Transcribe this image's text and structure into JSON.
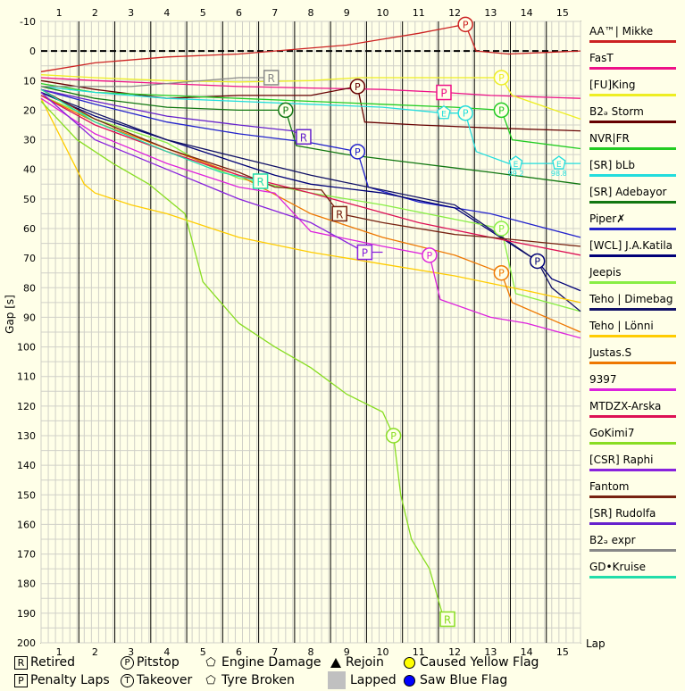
{
  "chart_data": {
    "type": "line",
    "title": "",
    "xlabel": "Lap",
    "ylabel": "Gap [s]",
    "xlim": [
      0.5,
      15.5
    ],
    "ylim": [
      -10,
      200
    ],
    "y_inverted": true,
    "x_ticks": [
      1,
      2,
      3,
      4,
      5,
      6,
      7,
      8,
      9,
      10,
      11,
      12,
      13,
      14,
      15
    ],
    "y_ticks": [
      -10,
      0,
      10,
      20,
      30,
      40,
      50,
      60,
      70,
      80,
      90,
      100,
      110,
      120,
      130,
      140,
      150,
      160,
      170,
      180,
      190,
      200
    ],
    "grid": true,
    "legend_position": "right",
    "series": [
      {
        "name": "AA™| Mikke",
        "color": "#cc2222",
        "points": [
          [
            0.5,
            7
          ],
          [
            2,
            4
          ],
          [
            4,
            2
          ],
          [
            6,
            1
          ],
          [
            7,
            0
          ],
          [
            9,
            -2
          ],
          [
            10,
            -4
          ],
          [
            11,
            -6
          ],
          [
            12.3,
            -9
          ],
          [
            12.6,
            0
          ],
          [
            13.5,
            1
          ],
          [
            15.5,
            0
          ]
        ],
        "events": [
          {
            "type": "pitstop",
            "x": 12.3,
            "y": -9
          }
        ]
      },
      {
        "name": "FasT",
        "color": "#ee1188",
        "points": [
          [
            0.5,
            9
          ],
          [
            2,
            10
          ],
          [
            4,
            11
          ],
          [
            6,
            12
          ],
          [
            8,
            12.5
          ],
          [
            10,
            13
          ],
          [
            11.7,
            14
          ],
          [
            13,
            15
          ],
          [
            15.5,
            16
          ]
        ],
        "events": [
          {
            "type": "penalty",
            "x": 11.7,
            "y": 14
          }
        ]
      },
      {
        "name": "[FU]King",
        "color": "#eeee22",
        "points": [
          [
            0.5,
            8
          ],
          [
            2,
            9
          ],
          [
            4,
            10
          ],
          [
            6,
            10.5
          ],
          [
            8,
            10
          ],
          [
            9.3,
            9
          ],
          [
            11,
            9
          ],
          [
            13.3,
            9
          ],
          [
            13.6,
            15
          ],
          [
            15.5,
            23
          ]
        ],
        "events": [
          {
            "type": "pitstop",
            "x": 13.3,
            "y": 9
          }
        ]
      },
      {
        "name": "B2ₔ Storm",
        "color": "#660000",
        "points": [
          [
            0.5,
            10
          ],
          [
            2,
            13
          ],
          [
            4,
            16
          ],
          [
            6,
            15
          ],
          [
            8,
            15
          ],
          [
            9.3,
            12
          ],
          [
            9.5,
            24
          ],
          [
            11,
            25
          ],
          [
            13,
            26
          ],
          [
            15.5,
            27
          ]
        ],
        "events": [
          {
            "type": "pitstop",
            "x": 9.3,
            "y": 12
          }
        ]
      },
      {
        "name": "NVR|FR",
        "color": "#22cc22",
        "points": [
          [
            0.5,
            11
          ],
          [
            2,
            14
          ],
          [
            4,
            15
          ],
          [
            6,
            16
          ],
          [
            8,
            17
          ],
          [
            10,
            18
          ],
          [
            12,
            19
          ],
          [
            13.3,
            20
          ],
          [
            13.6,
            30
          ],
          [
            15.5,
            33
          ]
        ],
        "events": [
          {
            "type": "pitstop",
            "x": 13.3,
            "y": 20
          }
        ]
      },
      {
        "name": "[SR] bLb",
        "color": "#22dddd",
        "points": [
          [
            0.5,
            12
          ],
          [
            2,
            14
          ],
          [
            4,
            16
          ],
          [
            6,
            17
          ],
          [
            8,
            18
          ],
          [
            10,
            19
          ],
          [
            11.7,
            21
          ],
          [
            12.3,
            21
          ],
          [
            12.6,
            34
          ],
          [
            13.5,
            38
          ],
          [
            14.5,
            38
          ],
          [
            15.5,
            38
          ]
        ],
        "events": [
          {
            "type": "engine",
            "x": 11.7,
            "y": 21
          },
          {
            "type": "pitstop",
            "x": 12.3,
            "y": 21
          },
          {
            "type": "engine",
            "x": 13.7,
            "y": 38
          },
          {
            "type": "engine",
            "x": 14.9,
            "y": 38
          }
        ]
      },
      {
        "name": "[SR] Adebayor",
        "color": "#117711",
        "points": [
          [
            0.5,
            12
          ],
          [
            2,
            16
          ],
          [
            4,
            19
          ],
          [
            6,
            20
          ],
          [
            7.3,
            20
          ],
          [
            7.6,
            32
          ],
          [
            9,
            35
          ],
          [
            11,
            38
          ],
          [
            13,
            41
          ],
          [
            15.5,
            45
          ]
        ],
        "events": [
          {
            "type": "pitstop",
            "x": 7.3,
            "y": 20
          }
        ]
      },
      {
        "name": "Piper✗",
        "color": "#2222cc",
        "points": [
          [
            0.5,
            13
          ],
          [
            2,
            18
          ],
          [
            4,
            24
          ],
          [
            6,
            28
          ],
          [
            8,
            31
          ],
          [
            9.3,
            34
          ],
          [
            9.6,
            46
          ],
          [
            11,
            51
          ],
          [
            13,
            55
          ],
          [
            15.5,
            63
          ]
        ],
        "events": [
          {
            "type": "pitstop",
            "x": 9.3,
            "y": 34
          }
        ]
      },
      {
        "name": "[WCL] J.A.Katila",
        "color": "#000077",
        "points": [
          [
            0.5,
            14
          ],
          [
            2,
            22
          ],
          [
            4,
            30
          ],
          [
            6,
            38
          ],
          [
            7,
            42
          ],
          [
            8,
            45
          ],
          [
            10,
            48
          ],
          [
            12,
            53
          ],
          [
            14.3,
            71
          ],
          [
            14.7,
            77
          ],
          [
            15.5,
            81
          ]
        ],
        "events": [
          {
            "type": "pitstop",
            "x": 14.3,
            "y": 71
          }
        ]
      },
      {
        "name": "Jeepis",
        "color": "#88ee44",
        "points": [
          [
            0.5,
            15
          ],
          [
            2,
            23
          ],
          [
            4,
            31
          ],
          [
            5,
            38
          ],
          [
            6,
            43
          ],
          [
            8,
            48
          ],
          [
            10,
            52
          ],
          [
            13.3,
            60
          ],
          [
            13.7,
            82
          ],
          [
            15.5,
            88
          ]
        ],
        "events": [
          {
            "type": "pitstop",
            "x": 13.3,
            "y": 60
          }
        ]
      },
      {
        "name": "Teho | Dimebag",
        "color": "#111166",
        "points": [
          [
            0.5,
            14
          ],
          [
            2,
            21
          ],
          [
            4,
            30
          ],
          [
            6,
            36
          ],
          [
            8,
            42
          ],
          [
            10,
            47
          ],
          [
            12,
            52
          ],
          [
            14.3,
            71
          ],
          [
            14.7,
            80
          ],
          [
            15.5,
            88
          ]
        ],
        "events": []
      },
      {
        "name": "Teho | Lönni",
        "color": "#ffcc00",
        "points": [
          [
            0.5,
            16
          ],
          [
            1.7,
            45
          ],
          [
            2,
            48
          ],
          [
            3,
            52
          ],
          [
            4,
            55
          ],
          [
            6,
            63
          ],
          [
            8,
            68
          ],
          [
            10,
            72
          ],
          [
            12,
            76
          ],
          [
            14,
            81
          ],
          [
            15.5,
            85
          ]
        ],
        "events": []
      },
      {
        "name": "Justas.S",
        "color": "#ee7700",
        "points": [
          [
            0.5,
            15
          ],
          [
            2,
            24
          ],
          [
            4,
            33
          ],
          [
            6,
            42
          ],
          [
            8,
            55
          ],
          [
            10,
            63
          ],
          [
            12,
            69
          ],
          [
            13.3,
            75
          ],
          [
            13.6,
            85
          ],
          [
            15.5,
            95
          ]
        ],
        "events": [
          {
            "type": "pitstop",
            "x": 13.3,
            "y": 75
          }
        ]
      },
      {
        "name": "9397",
        "color": "#dd22dd",
        "points": [
          [
            0.5,
            16
          ],
          [
            2,
            28
          ],
          [
            4,
            38
          ],
          [
            6,
            46
          ],
          [
            7,
            48
          ],
          [
            8,
            61
          ],
          [
            10,
            66
          ],
          [
            11.3,
            69
          ],
          [
            11.6,
            84
          ],
          [
            13,
            90
          ],
          [
            14,
            92
          ],
          [
            15.5,
            97
          ]
        ],
        "events": [
          {
            "type": "pitstop",
            "x": 11.3,
            "y": 69
          }
        ]
      },
      {
        "name": "MTDZX-Arska",
        "color": "#dd1155",
        "points": [
          [
            0.5,
            15
          ],
          [
            2,
            25
          ],
          [
            4,
            34
          ],
          [
            6,
            42
          ],
          [
            8,
            48
          ],
          [
            9.5,
            53
          ],
          [
            11,
            58
          ],
          [
            13,
            63
          ],
          [
            15.5,
            69
          ]
        ],
        "events": []
      },
      {
        "name": "GoKimi7",
        "color": "#88dd22",
        "points": [
          [
            0.5,
            17
          ],
          [
            1.5,
            30
          ],
          [
            2.5,
            38
          ],
          [
            3.5,
            45
          ],
          [
            4.5,
            55
          ],
          [
            5,
            78
          ],
          [
            6,
            92
          ],
          [
            7,
            100
          ],
          [
            8,
            107
          ],
          [
            9,
            116
          ],
          [
            10,
            122
          ],
          [
            10.3,
            130
          ],
          [
            10.5,
            150
          ],
          [
            10.8,
            165
          ],
          [
            11.3,
            175
          ],
          [
            11.7,
            192
          ]
        ],
        "events": [
          {
            "type": "pitstop",
            "x": 10.3,
            "y": 130
          },
          {
            "type": "retired",
            "x": 11.8,
            "y": 192
          }
        ]
      },
      {
        "name": "[CSR] Raphi",
        "color": "#8822dd",
        "points": [
          [
            0.5,
            14
          ],
          [
            2,
            30
          ],
          [
            4,
            40
          ],
          [
            6,
            50
          ],
          [
            8,
            58
          ],
          [
            9.5,
            68
          ],
          [
            10,
            68
          ]
        ],
        "events": [
          {
            "type": "penalty",
            "x": 9.5,
            "y": 68
          }
        ]
      },
      {
        "name": "Fantom",
        "color": "#772211",
        "points": [
          [
            0.5,
            13
          ],
          [
            2,
            23
          ],
          [
            4,
            33
          ],
          [
            6,
            41
          ],
          [
            7,
            46
          ],
          [
            8.3,
            47
          ],
          [
            8.8,
            55
          ],
          [
            10,
            58
          ],
          [
            12,
            62
          ],
          [
            13,
            63
          ],
          [
            15.5,
            66
          ]
        ],
        "events": [
          {
            "type": "retired",
            "x": 8.8,
            "y": 55
          }
        ]
      },
      {
        "name": "[SR] Rudolfa",
        "color": "#6622cc",
        "points": [
          [
            0.5,
            13
          ],
          [
            2,
            17
          ],
          [
            4,
            22
          ],
          [
            6,
            25
          ],
          [
            7.5,
            27
          ],
          [
            7.8,
            29
          ],
          [
            8,
            29
          ]
        ],
        "events": [
          {
            "type": "retired",
            "x": 7.8,
            "y": 29
          }
        ]
      },
      {
        "name": "B2ₔ expr",
        "color": "#888888",
        "points": [
          [
            0.5,
            12
          ],
          [
            3,
            12
          ],
          [
            6,
            9
          ],
          [
            6.9,
            9
          ]
        ],
        "events": [
          {
            "type": "retired",
            "x": 6.9,
            "y": 9
          }
        ]
      },
      {
        "name": "GD•Kruise",
        "color": "#22ddaa",
        "points": [
          [
            0.5,
            13
          ],
          [
            2,
            24
          ],
          [
            4,
            34
          ],
          [
            5.5,
            41
          ],
          [
            6.6,
            44
          ]
        ],
        "events": [
          {
            "type": "retired",
            "x": 6.6,
            "y": 44
          }
        ]
      }
    ],
    "key": [
      {
        "symbol": "R",
        "label": "Retired"
      },
      {
        "symbol": "P",
        "label": "Pitstop"
      },
      {
        "symbol": "E",
        "label": "Engine Damage"
      },
      {
        "symbol": "▲",
        "label": "Rejoin"
      },
      {
        "symbol": "●",
        "label": "Caused Yellow Flag"
      },
      {
        "symbol": "P",
        "label": "Penalty Laps"
      },
      {
        "symbol": "T",
        "label": "Takeover"
      },
      {
        "symbol": "⬠",
        "label": "Tyre Broken"
      },
      {
        "symbol": "■",
        "label": "Lapped"
      },
      {
        "symbol": "●",
        "label": "Saw Blue Flag"
      }
    ],
    "annotations": [
      "99.2",
      "98.8"
    ]
  }
}
